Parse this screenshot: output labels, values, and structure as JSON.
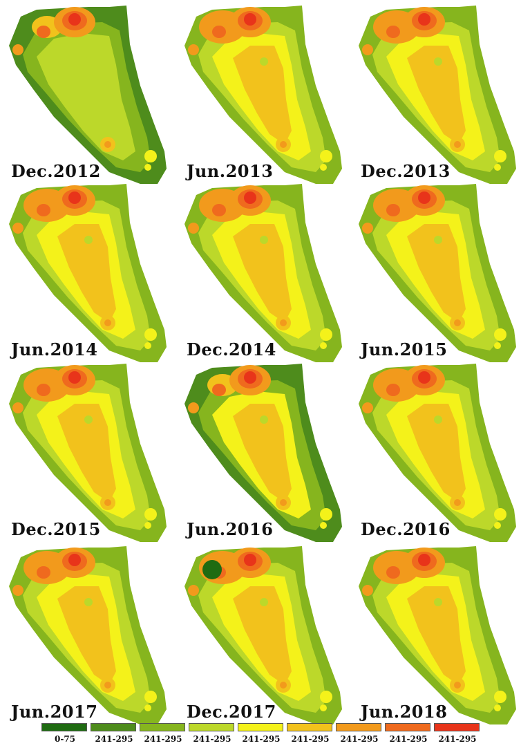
{
  "palette": [
    "#1f6b12",
    "#4e8c1c",
    "#86b51e",
    "#bcd82a",
    "#f4f21a",
    "#f2c21c",
    "#f29a1c",
    "#ef6a1e",
    "#e8341a"
  ],
  "panels": [
    {
      "label": "Dec.2012",
      "style": "green"
    },
    {
      "label": "Jun.2013",
      "style": "yellow"
    },
    {
      "label": "Dec.2013",
      "style": "yellow"
    },
    {
      "label": "Jun.2014",
      "style": "orange"
    },
    {
      "label": "Dec.2014",
      "style": "orange"
    },
    {
      "label": "Jun.2015",
      "style": "orange"
    },
    {
      "label": "Dec.2015",
      "style": "orange"
    },
    {
      "label": "Jun.2016",
      "style": "green2"
    },
    {
      "label": "Dec.2016",
      "style": "orange"
    },
    {
      "label": "Jun.2017",
      "style": "orange"
    },
    {
      "label": "Dec.2017",
      "style": "orange2"
    },
    {
      "label": "Jun.2018",
      "style": "orange"
    }
  ],
  "legend": [
    {
      "label": "0-75",
      "color": "#1f6b12"
    },
    {
      "label": "241-295",
      "color": "#4e8c1c"
    },
    {
      "label": "241-295",
      "color": "#86b51e"
    },
    {
      "label": "241-295",
      "color": "#bcd82a"
    },
    {
      "label": "241-295",
      "color": "#f4f21a"
    },
    {
      "label": "241-295",
      "color": "#f2c21c"
    },
    {
      "label": "241-295",
      "color": "#f29a1c"
    },
    {
      "label": "241-295",
      "color": "#ef6a1e"
    },
    {
      "label": "241-295",
      "color": "#e8341a"
    }
  ]
}
